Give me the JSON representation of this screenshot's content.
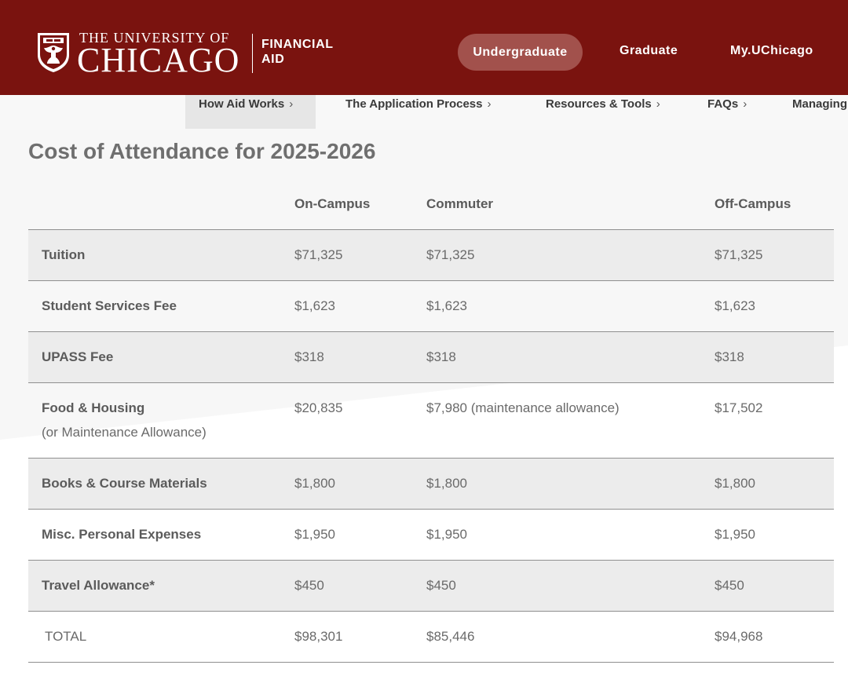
{
  "header": {
    "university_top": "THE UNIVERSITY OF",
    "university_main": "CHICAGO",
    "department_line1": "FINANCIAL",
    "department_line2": "AID",
    "nav": [
      {
        "label": "Undergraduate",
        "active": true
      },
      {
        "label": "Graduate",
        "active": false
      },
      {
        "label": "My.UChicago",
        "active": false
      }
    ],
    "colors": {
      "brand": "#7a130f",
      "active_pill": "#a2514c"
    }
  },
  "subnav": {
    "items": [
      {
        "label": "How Aid Works",
        "active": true
      },
      {
        "label": "The Application Process",
        "active": false
      },
      {
        "label": "Resources & Tools",
        "active": false
      },
      {
        "label": "FAQs",
        "active": false
      },
      {
        "label": "Managing",
        "active": false
      }
    ],
    "chevron": "›"
  },
  "main": {
    "title": "Cost of Attendance for 2025-2026",
    "table": {
      "columns": [
        "On-Campus",
        "Commuter",
        "Off-Campus"
      ],
      "rows": [
        {
          "label": "Tuition",
          "sublabel": "",
          "values": [
            "$71,325",
            "$71,325",
            "$71,325"
          ]
        },
        {
          "label": "Student Services Fee",
          "sublabel": "",
          "values": [
            "$1,623",
            "$1,623",
            "$1,623"
          ]
        },
        {
          "label": "UPASS Fee",
          "sublabel": "",
          "values": [
            "$318",
            "$318",
            "$318"
          ]
        },
        {
          "label": "Food & Housing",
          "sublabel": "(or Maintenance Allowance)",
          "values": [
            "$20,835",
            "$7,980 (maintenance allowance)",
            "$17,502"
          ]
        },
        {
          "label": "Books & Course Materials",
          "sublabel": "",
          "values": [
            "$1,800",
            "$1,800",
            "$1,800"
          ]
        },
        {
          "label": "Misc. Personal Expenses",
          "sublabel": "",
          "values": [
            "$1,950",
            "$1,950",
            "$1,950"
          ]
        },
        {
          "label": "Travel Allowance*",
          "sublabel": "",
          "values": [
            "$450",
            "$450",
            "$450"
          ]
        }
      ],
      "total": {
        "label": "TOTAL",
        "values": [
          "$98,301",
          "$85,446",
          "$94,968"
        ]
      }
    }
  }
}
